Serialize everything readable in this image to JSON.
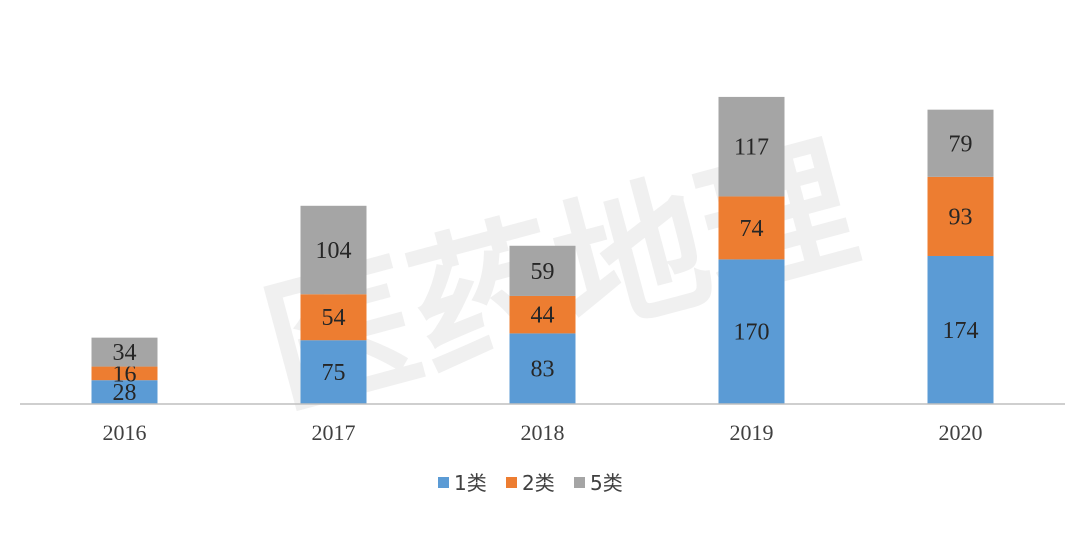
{
  "watermark": "医药地理",
  "chart_data": {
    "type": "bar",
    "stacked": true,
    "categories": [
      "2016",
      "2017",
      "2018",
      "2019",
      "2020"
    ],
    "series": [
      {
        "name": "1类",
        "color": "#5B9BD5",
        "values": [
          28,
          75,
          83,
          170,
          174
        ]
      },
      {
        "name": "2类",
        "color": "#ED7D31",
        "values": [
          16,
          54,
          44,
          74,
          93
        ]
      },
      {
        "name": "5类",
        "color": "#A5A5A5",
        "values": [
          34,
          104,
          59,
          117,
          79
        ]
      }
    ],
    "title": "",
    "xlabel": "",
    "ylabel": "",
    "ylim": [
      0,
      375
    ],
    "grid": false,
    "legend_position": "bottom",
    "label_colors": {
      "on_blue": "#262626",
      "on_orange": "#262626",
      "on_gray": "#262626"
    }
  }
}
